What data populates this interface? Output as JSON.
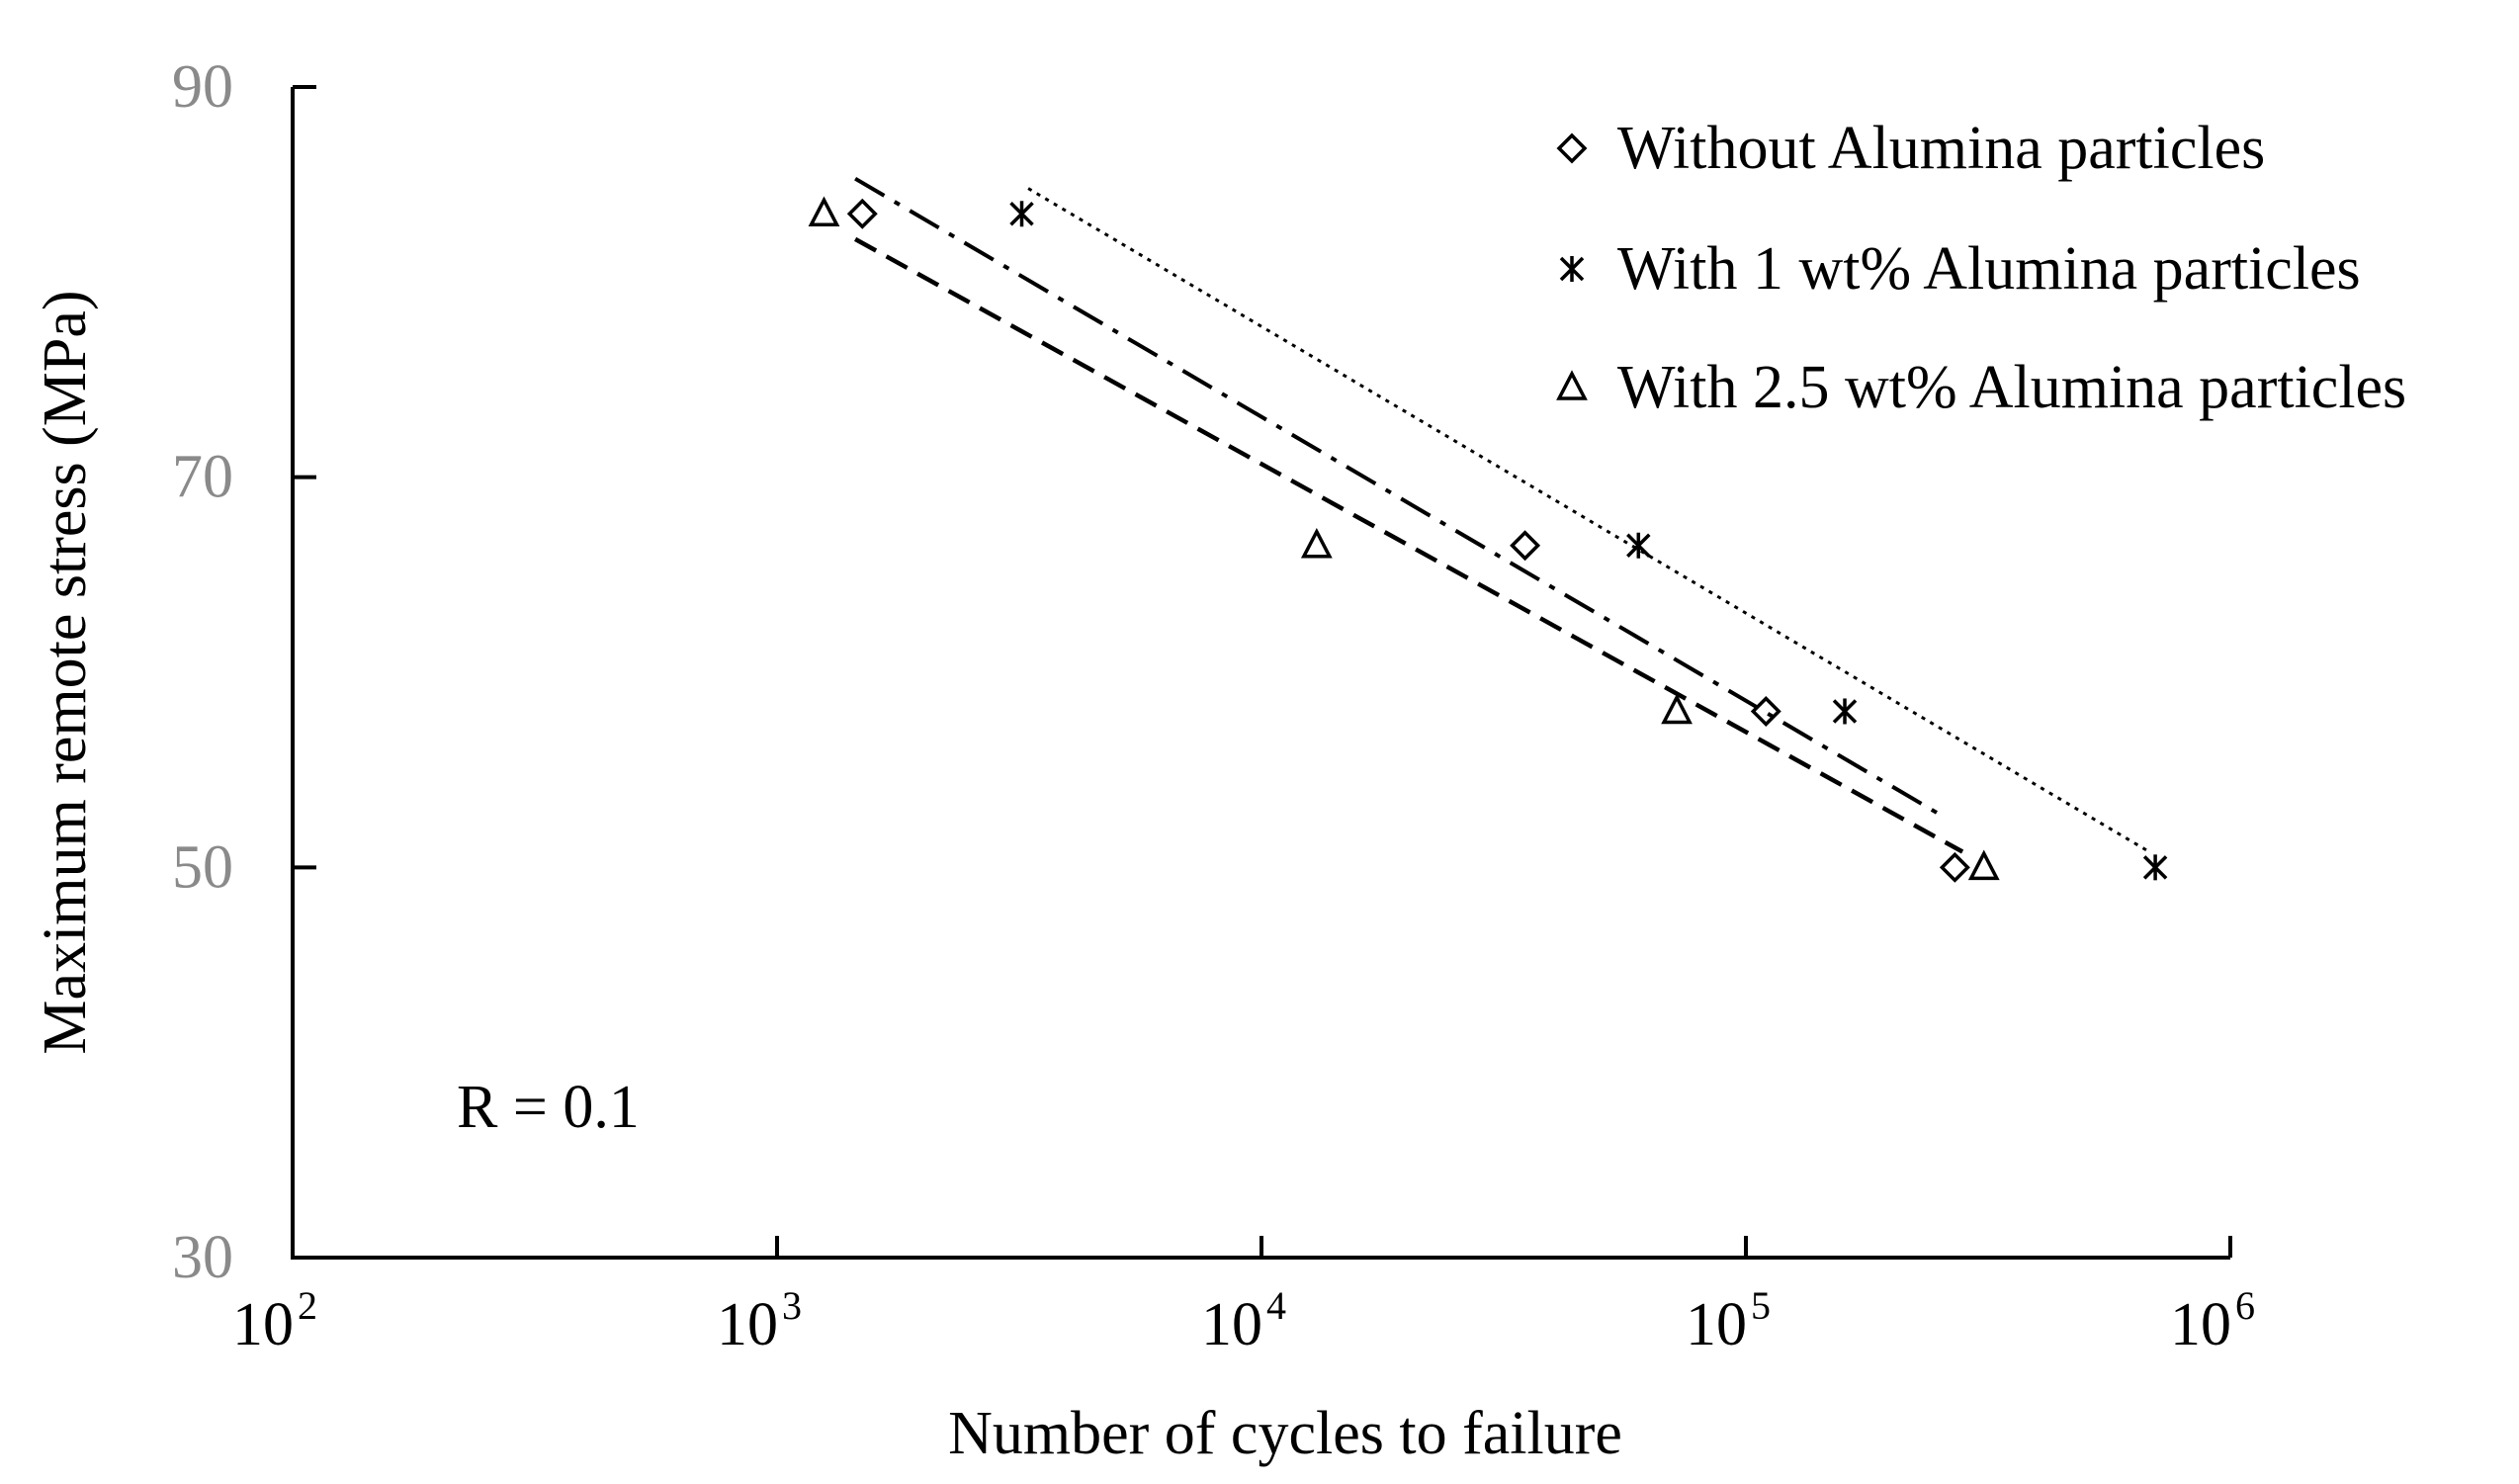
{
  "chart_data": {
    "type": "scatter",
    "title": "",
    "xlabel": "Number of cycles to failure",
    "ylabel": "Maximum remote stress (MPa)",
    "xscale": "log",
    "xlim": [
      100,
      1000000
    ],
    "ylim": [
      30,
      90
    ],
    "x_ticks": [
      {
        "base": "10",
        "exp": "2",
        "value": 100
      },
      {
        "base": "10",
        "exp": "3",
        "value": 1000
      },
      {
        "base": "10",
        "exp": "4",
        "value": 10000
      },
      {
        "base": "10",
        "exp": "5",
        "value": 100000
      },
      {
        "base": "10",
        "exp": "6",
        "value": 1000000
      }
    ],
    "y_ticks": [
      {
        "label": "30",
        "value": 30
      },
      {
        "label": "50",
        "value": 50
      },
      {
        "label": "70",
        "value": 70
      },
      {
        "label": "90",
        "value": 90
      }
    ],
    "legend_position": "top-right",
    "annotation": "R = 0.1",
    "series": [
      {
        "name": "Without Alumina particles",
        "marker": "diamond",
        "points": [
          [
            1500,
            83.5
          ],
          [
            35000,
            66.5
          ],
          [
            110000,
            58.0
          ],
          [
            270000,
            50.0
          ]
        ],
        "trendline": {
          "style": "dash-dot",
          "x": [
            1450,
            260000
          ],
          "y": [
            85.3,
            52.5
          ]
        }
      },
      {
        "name": "With 1 wt% Alumina particles",
        "marker": "asterisk",
        "points": [
          [
            3200,
            83.5
          ],
          [
            60000,
            66.5
          ],
          [
            160000,
            58.0
          ],
          [
            700000,
            50.0
          ]
        ],
        "trendline": {
          "style": "dotted",
          "x": [
            3300,
            680000
          ],
          "y": [
            84.8,
            50.8
          ]
        }
      },
      {
        "name": "With 2.5 wt% Alumina particles",
        "marker": "triangle",
        "points": [
          [
            1250,
            83.5
          ],
          [
            13000,
            66.5
          ],
          [
            72000,
            58.0
          ],
          [
            310000,
            50.0
          ]
        ],
        "trendline": {
          "style": "dashed",
          "x": [
            1450,
            280000
          ],
          "y": [
            82.2,
            50.8
          ]
        }
      }
    ]
  }
}
